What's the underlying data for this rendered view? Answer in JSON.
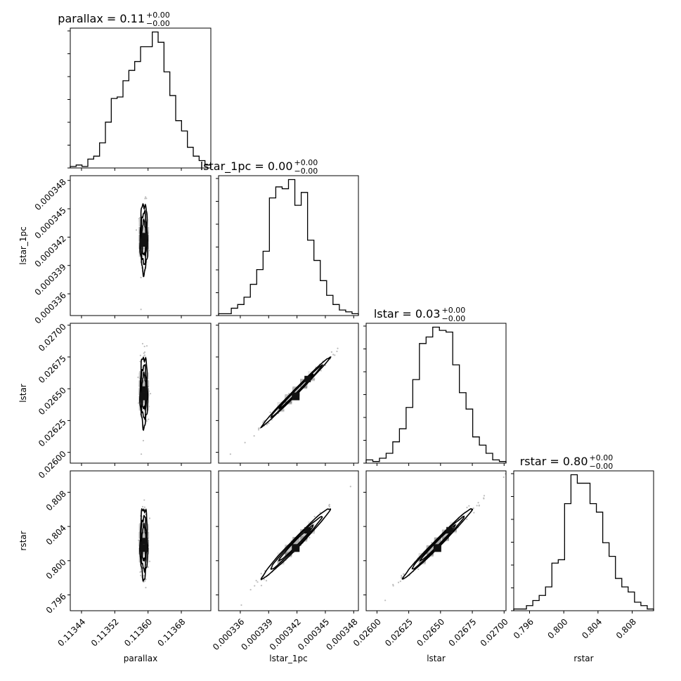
{
  "chart_data": {
    "type": "corner",
    "parameters": [
      "parallax",
      "lstar_1pc",
      "lstar",
      "rstar"
    ],
    "titles": [
      {
        "name": "parallax",
        "value": "0.11",
        "plus": "+0.00",
        "minus": "−0.00"
      },
      {
        "name": "lstar_1pc",
        "value": "0.00",
        "plus": "+0.00",
        "minus": "−0.00"
      },
      {
        "name": "lstar",
        "value": "0.03",
        "plus": "+0.00",
        "minus": "−0.00"
      },
      {
        "name": "rstar",
        "value": "0.80",
        "plus": "+0.00",
        "minus": "−0.00"
      }
    ],
    "axis_labels": [
      "parallax",
      "lstar_1pc",
      "lstar",
      "rstar"
    ],
    "ranges": [
      [
        0.113413,
        0.113751
      ],
      [
        0.0003337,
        0.0003485
      ],
      [
        0.025915,
        0.027015
      ],
      [
        0.79415,
        0.8105
      ]
    ],
    "ticks": [
      {
        "values": [
          0.11344,
          0.11352,
          0.1136,
          0.11368
        ],
        "labels": [
          "0.11344",
          "0.11352",
          "0.11360",
          "0.11368"
        ]
      },
      {
        "values": [
          0.000336,
          0.000339,
          0.000342,
          0.000345,
          0.000348
        ],
        "labels": [
          "0.000336",
          "0.000339",
          "0.000342",
          "0.000345",
          "0.000348"
        ]
      },
      {
        "values": [
          0.026,
          0.02625,
          0.0265,
          0.02675,
          0.027
        ],
        "labels": [
          "0.02600",
          "0.02625",
          "0.02650",
          "0.02675",
          "0.02700"
        ]
      },
      {
        "values": [
          0.796,
          0.8,
          0.804,
          0.808
        ],
        "labels": [
          "0.796",
          "0.800",
          "0.804",
          "0.808"
        ]
      }
    ],
    "histograms": [
      {
        "param": "parallax",
        "counts": [
          1,
          2,
          1,
          6,
          8,
          17,
          31,
          47,
          48,
          59,
          66,
          72,
          82,
          82,
          92,
          85,
          65,
          49,
          32,
          25,
          14,
          8,
          5,
          2
        ]
      },
      {
        "param": "lstar_1pc",
        "counts": [
          1,
          1,
          4,
          6,
          10,
          17,
          25,
          35,
          64,
          70,
          69,
          74,
          60,
          67,
          41,
          30,
          19,
          11,
          6,
          3,
          2,
          1
        ]
      },
      {
        "param": "lstar",
        "counts": [
          2,
          1,
          3,
          6,
          13,
          21,
          34,
          51,
          73,
          77,
          83,
          81,
          80,
          60,
          43,
          33,
          16,
          11,
          6,
          2,
          1
        ]
      },
      {
        "param": "rstar",
        "counts": [
          1,
          1,
          3,
          6,
          9,
          14,
          28,
          30,
          63,
          80,
          75,
          75,
          63,
          58,
          40,
          32,
          19,
          14,
          11,
          5,
          3,
          1
        ]
      }
    ],
    "pair_plots": [
      {
        "x": "parallax",
        "y": "lstar_1pc",
        "mean": [
          0.11359,
          0.0003419
        ],
        "sd": [
          4.5e-06,
          1.8e-06
        ],
        "corr": 0.0
      },
      {
        "x": "parallax",
        "y": "lstar",
        "mean": [
          0.11359,
          0.026478
        ],
        "sd": [
          4.5e-06,
          0.000136
        ],
        "corr": 0.0
      },
      {
        "x": "lstar_1pc",
        "y": "lstar",
        "mean": [
          0.0003419,
          0.026478
        ],
        "sd": [
          1.8e-06,
          0.000136
        ],
        "corr": 0.995
      },
      {
        "x": "parallax",
        "y": "rstar",
        "mean": [
          0.11359,
          0.80205
        ],
        "sd": [
          4.5e-06,
          0.00205
        ],
        "corr": 0.0
      },
      {
        "x": "lstar_1pc",
        "y": "rstar",
        "mean": [
          0.0003419,
          0.80205
        ],
        "sd": [
          1.8e-06,
          0.00205
        ],
        "corr": 0.985
      },
      {
        "x": "lstar",
        "y": "rstar",
        "mean": [
          0.026478,
          0.80205
        ],
        "sd": [
          0.000136,
          0.00205
        ],
        "corr": 0.99
      }
    ],
    "contour_levels_sigma": [
      1.0,
      1.5,
      2.0
    ],
    "grid": false,
    "legend": "none"
  }
}
